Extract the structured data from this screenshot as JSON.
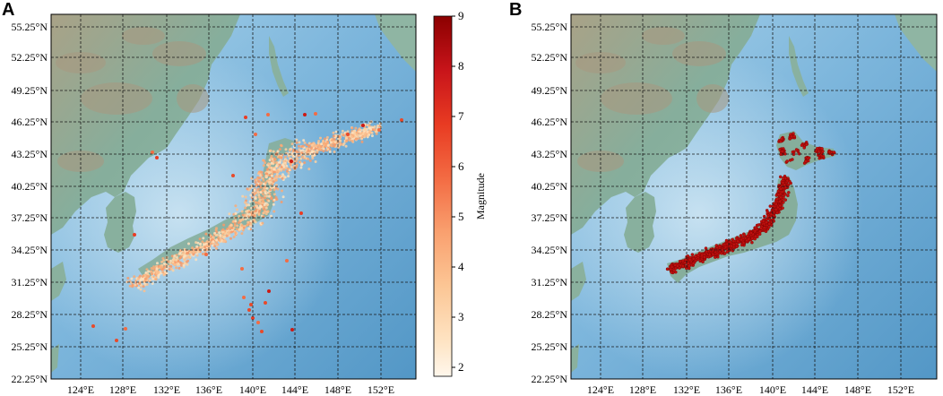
{
  "panels": [
    {
      "letter": "A"
    },
    {
      "letter": "B"
    }
  ],
  "lat_labels": [
    "55.25°N",
    "52.25°N",
    "49.25°N",
    "46.25°N",
    "43.25°N",
    "40.25°N",
    "37.25°N",
    "34.25°N",
    "31.25°N",
    "28.25°N",
    "25.25°N",
    "22.25°N"
  ],
  "lon_labels": [
    "124°E",
    "128°E",
    "132°E",
    "136°E",
    "140°E",
    "144°E",
    "148°E",
    "152°E"
  ],
  "colorbar": {
    "label": "Magnitude",
    "ticks": [
      "9",
      "8",
      "7",
      "6",
      "5",
      "4",
      "3",
      "2"
    ],
    "colors": [
      "#8b0000",
      "#cc1a14",
      "#ea3b22",
      "#f26c44",
      "#f79a6a",
      "#fbbf8e",
      "#fddcb6",
      "#fff3e4"
    ]
  },
  "colors": {
    "ocean": "#5ea2cf",
    "ocean_shallow": "#9fcbe6",
    "land": "#87b0a0",
    "mountain": "#b19c84",
    "grid": "#1a1a1a"
  }
}
